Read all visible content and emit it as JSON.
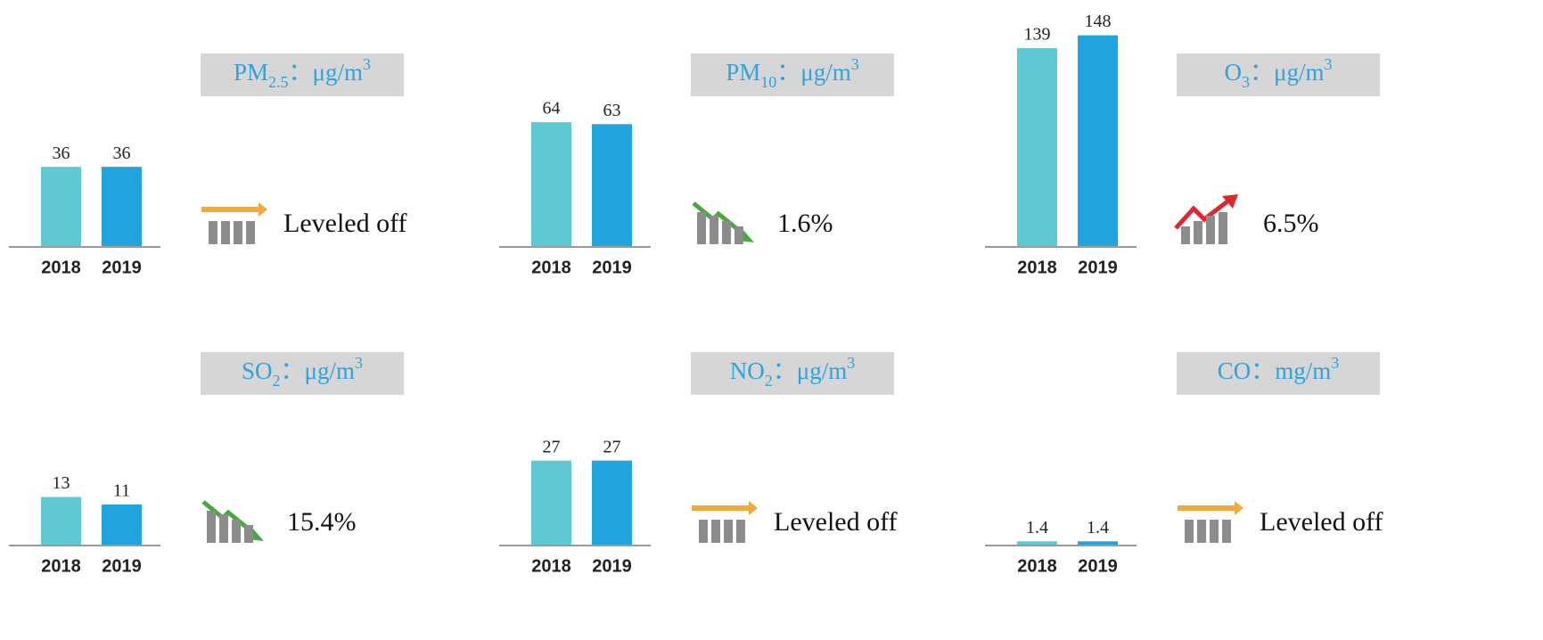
{
  "chart_data": [
    {
      "type": "bar",
      "pollutant": "PM",
      "pollutant_sub": "2.5",
      "unit": "：μg/m",
      "unit_sup": "3",
      "categories": [
        "2018",
        "2019"
      ],
      "values": [
        36,
        36
      ],
      "colors": [
        "#5fc8d5",
        "#1fa4dd"
      ],
      "ylim": [
        0,
        99
      ],
      "trend": "level",
      "annotation": "Leveled off"
    },
    {
      "type": "bar",
      "pollutant": "PM",
      "pollutant_sub": "10",
      "unit": "：μg/m",
      "unit_sup": "3",
      "categories": [
        "2018",
        "2019"
      ],
      "values": [
        64,
        63
      ],
      "colors": [
        "#5fc8d5",
        "#1fa4dd"
      ],
      "ylim": [
        0,
        113
      ],
      "trend": "down",
      "annotation": "1.6%"
    },
    {
      "type": "bar",
      "pollutant": "O",
      "pollutant_sub": "3",
      "unit": "：μg/m",
      "unit_sup": "3",
      "categories": [
        "2018",
        "2019"
      ],
      "values": [
        139,
        148
      ],
      "colors": [
        "#5fc8d5",
        "#1fa4dd"
      ],
      "ylim": [
        0,
        154
      ],
      "trend": "up",
      "annotation": "6.5%"
    },
    {
      "type": "bar",
      "pollutant": "SO",
      "pollutant_sub": "2",
      "unit": "：μg/m",
      "unit_sup": "3",
      "categories": [
        "2018",
        "2019"
      ],
      "values": [
        13,
        11
      ],
      "colors": [
        "#5fc8d5",
        "#1fa4dd"
      ],
      "ylim": [
        0,
        59
      ],
      "trend": "down",
      "annotation": "15.4%"
    },
    {
      "type": "bar",
      "pollutant": "NO",
      "pollutant_sub": "2",
      "unit": "：μg/m",
      "unit_sup": "3",
      "categories": [
        "2018",
        "2019"
      ],
      "values": [
        27,
        27
      ],
      "colors": [
        "#5fc8d5",
        "#1fa4dd"
      ],
      "ylim": [
        0,
        70
      ],
      "trend": "level",
      "annotation": "Leveled off"
    },
    {
      "type": "bar",
      "pollutant": "CO",
      "unit": "：mg/m",
      "unit_sup": "3",
      "categories": [
        "2018",
        "2019"
      ],
      "values": [
        1.4,
        1.4
      ],
      "colors": [
        "#5fc8d5",
        "#1fa4dd"
      ],
      "ylim": [
        0,
        74
      ],
      "trend": "level",
      "annotation": "Leveled off"
    }
  ]
}
